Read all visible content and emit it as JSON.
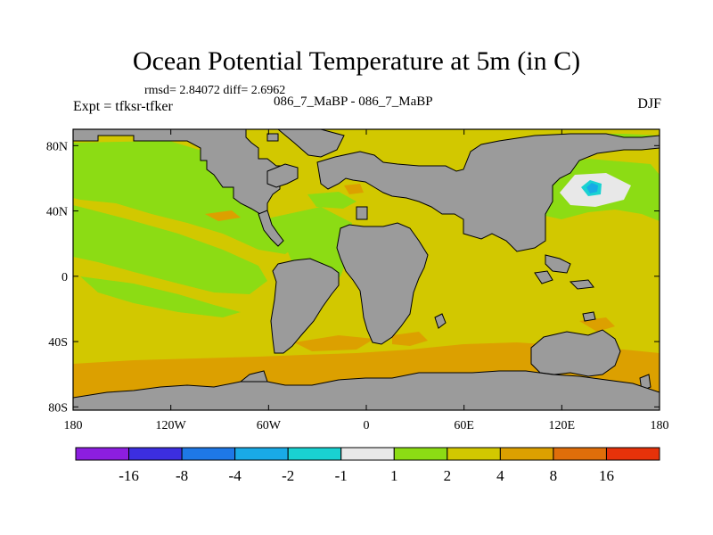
{
  "title": "Ocean Potential Temperature at 5m (in C)",
  "stats": "rmsd= 2.84072 diff= 2.6962",
  "experiment": "Expt = tfksr-tfker",
  "subtitle": "086_7_MaBP - 086_7_MaBP",
  "season": "DJF",
  "y_ticks": [
    {
      "label": "80N",
      "lat": 80
    },
    {
      "label": "40N",
      "lat": 40
    },
    {
      "label": "0",
      "lat": 0
    },
    {
      "label": "40S",
      "lat": -40
    },
    {
      "label": "80S",
      "lat": -80
    }
  ],
  "x_ticks": [
    {
      "label": "180",
      "lon": -180
    },
    {
      "label": "120W",
      "lon": -120
    },
    {
      "label": "60W",
      "lon": -60
    },
    {
      "label": "0",
      "lon": 0
    },
    {
      "label": "60E",
      "lon": 60
    },
    {
      "label": "120E",
      "lon": 120
    },
    {
      "label": "180",
      "lon": 180
    }
  ],
  "colorbar": {
    "colors": [
      "#8c1ee0",
      "#3c2ee0",
      "#1e78e6",
      "#19aae6",
      "#19d2d2",
      "#e8e8e8",
      "#8cdc14",
      "#d2c800",
      "#dca000",
      "#e06e0a",
      "#e6320a"
    ],
    "labels": [
      "-16",
      "-8",
      "-4",
      "-2",
      "-1",
      "1",
      "2",
      "4",
      "8",
      "16"
    ]
  },
  "colors": {
    "land": "#9b9b9b",
    "ocean_base": "#d2c800",
    "warm": "#dca000",
    "cool": "#8cdc14",
    "cold": "#e8e8e8",
    "colder": "#19d2d2",
    "coldest": "#19aae6"
  }
}
